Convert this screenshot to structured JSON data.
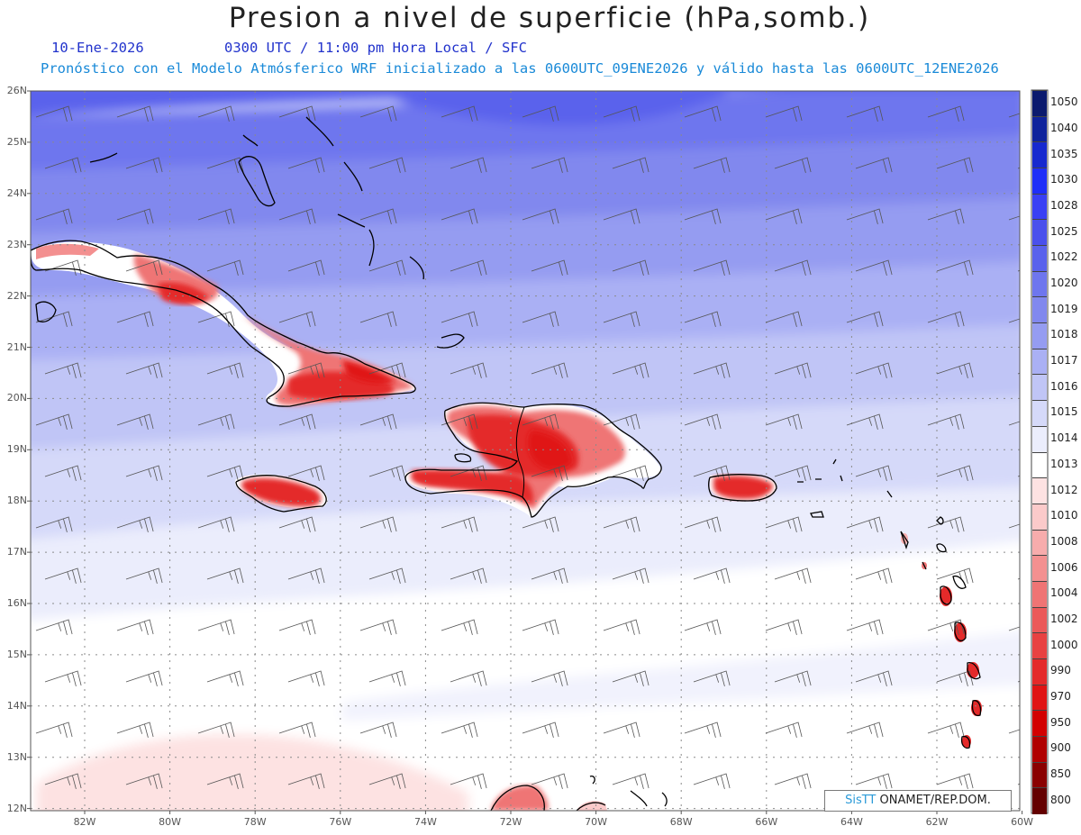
{
  "title": "Presion a nivel de superficie (hPa,somb.)",
  "subtitle": {
    "date": "10-Ene-2026",
    "time": "0300 UTC / 11:00 pm Hora Local / SFC",
    "description": "Pronóstico con el Modelo Atmósferico WRF inicializado a las 0600UTC_09ENE2026 y válido hasta las  0600UTC_12ENE2026"
  },
  "latitude_labels": [
    "26N",
    "25N",
    "24N",
    "23N",
    "22N",
    "21N",
    "20N",
    "19N",
    "18N",
    "17N",
    "16N",
    "15N",
    "14N",
    "13N",
    "12N"
  ],
  "longitude_labels": [
    "82W",
    "80W",
    "78W",
    "76W",
    "74W",
    "72W",
    "70W",
    "68W",
    "66W",
    "64W",
    "62W",
    "60W"
  ],
  "colorbar": {
    "levels": [
      "1050",
      "1040",
      "1035",
      "1030",
      "1028",
      "1025",
      "1022",
      "1020",
      "1019",
      "1018",
      "1017",
      "1016",
      "1015",
      "1014",
      "1013",
      "1012",
      "1010",
      "1008",
      "1006",
      "1004",
      "1002",
      "1000",
      "990",
      "970",
      "950",
      "900",
      "850",
      "800"
    ],
    "colors": [
      "#0b1a6e",
      "#0f239c",
      "#1729cf",
      "#1f2ef8",
      "#3a40f4",
      "#4a50ec",
      "#5a62ec",
      "#6e76ee",
      "#8188ee",
      "#959cf1",
      "#aab0f4",
      "#c0c5f6",
      "#d5d9f9",
      "#ebedfc",
      "#ffffff",
      "#fde2e2",
      "#fbcaca",
      "#f7acac",
      "#f39090",
      "#ef7474",
      "#eb5a5a",
      "#e84242",
      "#e42a2a",
      "#e01414",
      "#d20000",
      "#b00000",
      "#8a0000",
      "#640000"
    ]
  },
  "credit": {
    "brand": "SisTT",
    "rest": " ONAMET/REP.DOM."
  }
}
